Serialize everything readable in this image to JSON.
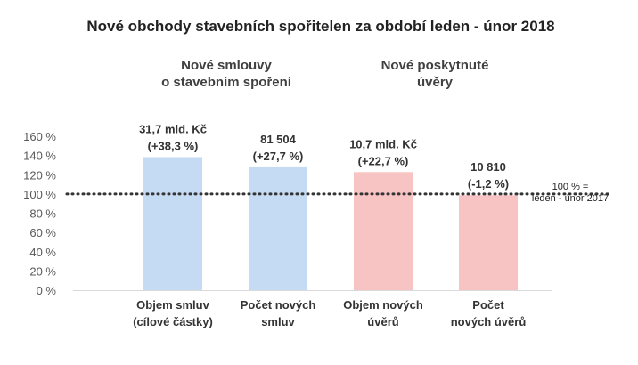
{
  "chart_data": {
    "type": "bar",
    "title": "Nové obchody stavebních spořitelen za období leden - únor 2018",
    "ylim": [
      0,
      160
    ],
    "yticks": [
      "0 %",
      "20 %",
      "40 %",
      "60 %",
      "80 %",
      "100 %",
      "120 %",
      "140 %",
      "160 %"
    ],
    "yticks_values": [
      0,
      20,
      40,
      60,
      80,
      100,
      120,
      140,
      160
    ],
    "grid": false,
    "groups": [
      {
        "label_lines": [
          "Nové smlouvy",
          "o stavebním spoření"
        ]
      },
      {
        "label_lines": [
          "Nové poskytnuté",
          "úvěry"
        ]
      }
    ],
    "bars": [
      {
        "category_lines": [
          "Objem smluv",
          "(cílové částky)"
        ],
        "value": 138.3,
        "label_lines": [
          "31,7 mld. Kč",
          "(+38,3 %)"
        ],
        "color": "#c5dbf3",
        "group": 0
      },
      {
        "category_lines": [
          "Počet  nových",
          "smluv"
        ],
        "value": 127.7,
        "label_lines": [
          "81 504",
          "(+27,7 %)"
        ],
        "color": "#c5dbf3",
        "group": 0
      },
      {
        "category_lines": [
          "Objem nových",
          "úvěrů"
        ],
        "value": 122.7,
        "label_lines": [
          "10,7 mld. Kč",
          "(+22,7 %)"
        ],
        "color": "#f8c3c3",
        "group": 1
      },
      {
        "category_lines": [
          "Počet",
          "nových úvěrů"
        ],
        "value": 98.8,
        "label_lines": [
          "10 810",
          "(-1,2 %)"
        ],
        "color": "#f8c3c3",
        "group": 1
      }
    ],
    "reference_line": {
      "value": 100,
      "style": "dotted",
      "label_lines": [
        "100 % =",
        "leden - únor 2017"
      ]
    }
  }
}
